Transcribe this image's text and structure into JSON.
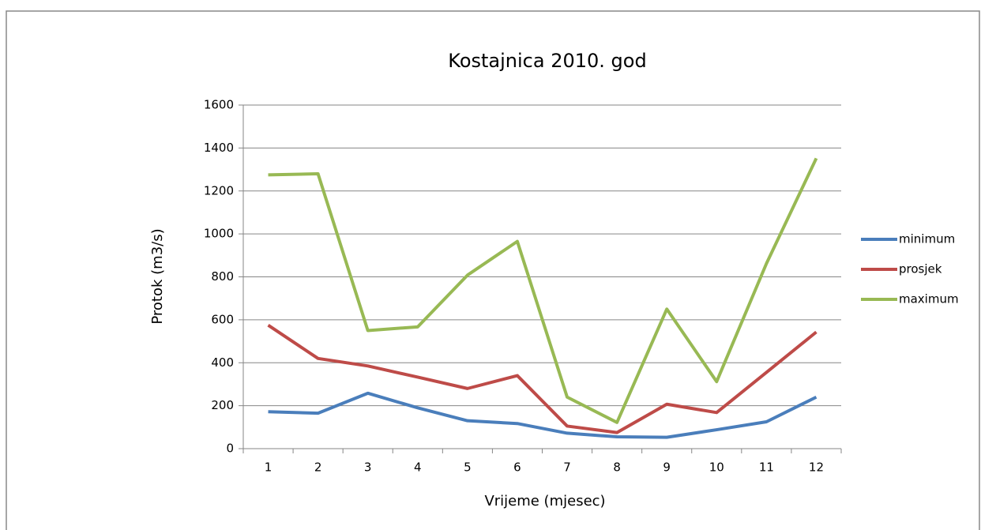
{
  "chart_data": {
    "type": "line",
    "title": "Kostajnica 2010. god",
    "x_label": "Vrijeme (mjesec)",
    "y_label": "Protok (m3/s)",
    "categories": [
      "1",
      "2",
      "3",
      "4",
      "5",
      "6",
      "7",
      "8",
      "9",
      "10",
      "11",
      "12"
    ],
    "series": [
      {
        "name": "minimum",
        "color": "#4a7ebb",
        "values": [
          172,
          165,
          258,
          190,
          130,
          117,
          72,
          55,
          53,
          88,
          125,
          240
        ]
      },
      {
        "name": "prosjek",
        "color": "#be4b48",
        "values": [
          575,
          420,
          385,
          333,
          280,
          340,
          105,
          75,
          207,
          168,
          355,
          543
        ]
      },
      {
        "name": "maximum",
        "color": "#98b954",
        "values": [
          1275,
          1280,
          550,
          567,
          808,
          965,
          240,
          122,
          650,
          312,
          862,
          1352
        ]
      }
    ],
    "ylim": [
      0,
      1600
    ],
    "yticks": [
      0,
      200,
      400,
      600,
      800,
      1000,
      1200,
      1400,
      1600
    ],
    "grid": true,
    "legend": "right"
  }
}
